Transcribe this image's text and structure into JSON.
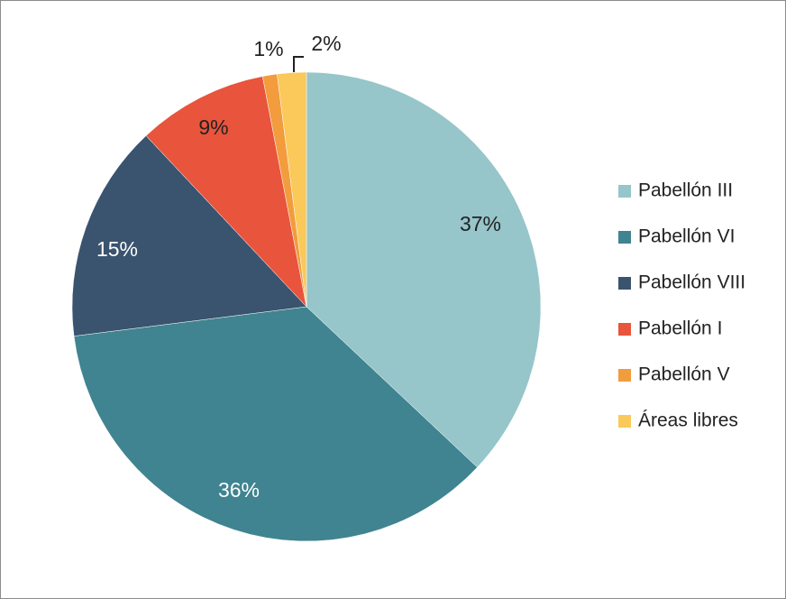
{
  "chart_data": {
    "type": "pie",
    "categories": [
      "Pabellón III",
      "Pabellón VI",
      "Pabellón VIII",
      "Pabellón I",
      "Pabellón V",
      "Áreas libres"
    ],
    "values": [
      37,
      36,
      15,
      9,
      1,
      2
    ],
    "value_labels": [
      "37%",
      "36%",
      "15%",
      "9%",
      "1%",
      "2%"
    ],
    "colors": [
      "#96c5ca",
      "#3f8490",
      "#3a536e",
      "#e8543c",
      "#f29c3e",
      "#fac95a"
    ],
    "legend": "right"
  }
}
